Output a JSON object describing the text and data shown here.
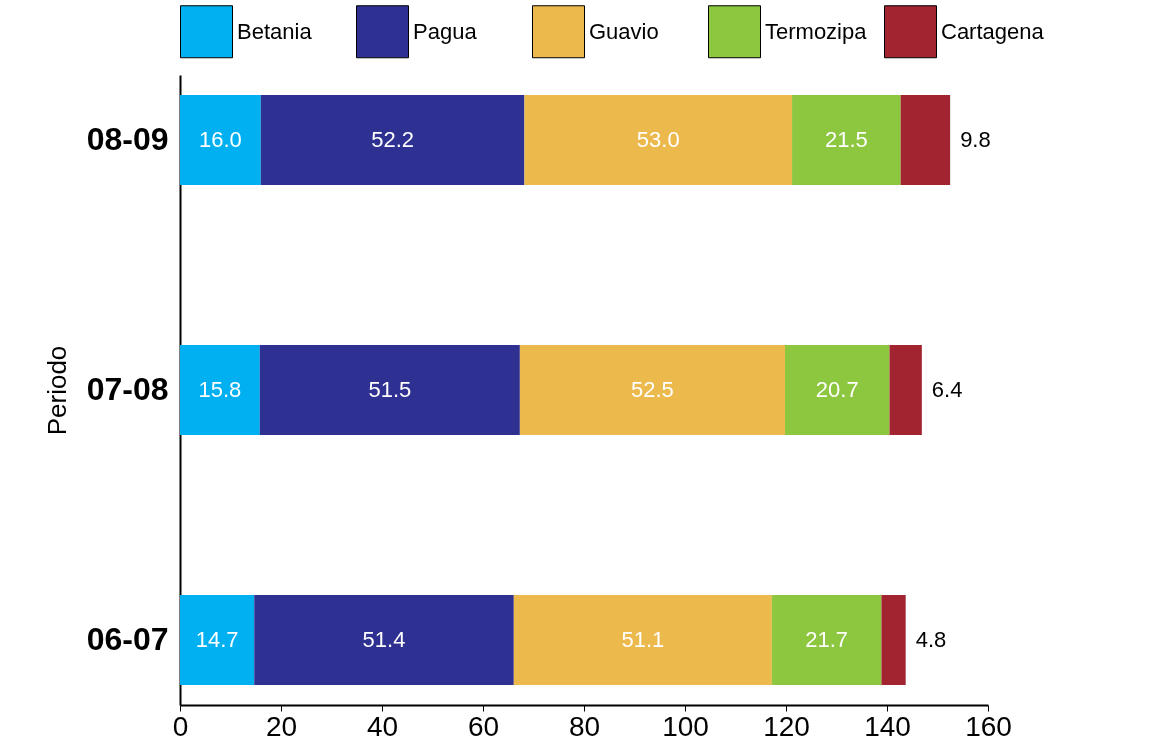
{
  "chart_data": {
    "type": "bar",
    "orientation": "horizontal",
    "stacked": true,
    "ylabel": "Periodo",
    "categories": [
      "08-09",
      "07-08",
      "06-07"
    ],
    "series": [
      {
        "name": "Betania",
        "color": "#00b0f0",
        "values": [
          16.0,
          15.8,
          14.7
        ],
        "value_labels": [
          "16.0",
          "15.8",
          "14.7"
        ]
      },
      {
        "name": "Pagua",
        "color": "#2e3192",
        "values": [
          52.2,
          51.5,
          51.4
        ],
        "value_labels": [
          "52.2",
          "51.5",
          "51.4"
        ]
      },
      {
        "name": "Guavio",
        "color": "#ecb94d",
        "values": [
          53.0,
          52.5,
          51.1
        ],
        "value_labels": [
          "53.0",
          "52.5",
          "51.1"
        ]
      },
      {
        "name": "Termozipa",
        "color": "#8dc63f",
        "values": [
          21.5,
          20.7,
          21.7
        ],
        "value_labels": [
          "21.5",
          "20.7",
          "21.7"
        ]
      },
      {
        "name": "Cartagena",
        "color": "#a32431",
        "values": [
          9.8,
          6.4,
          4.8
        ],
        "value_labels": [
          "9.8",
          "6.4",
          "4.8"
        ]
      }
    ],
    "xlim": [
      0,
      160
    ],
    "xticks": [
      0,
      20,
      40,
      60,
      80,
      100,
      120,
      140,
      160
    ],
    "grid": false,
    "legend": "top"
  }
}
